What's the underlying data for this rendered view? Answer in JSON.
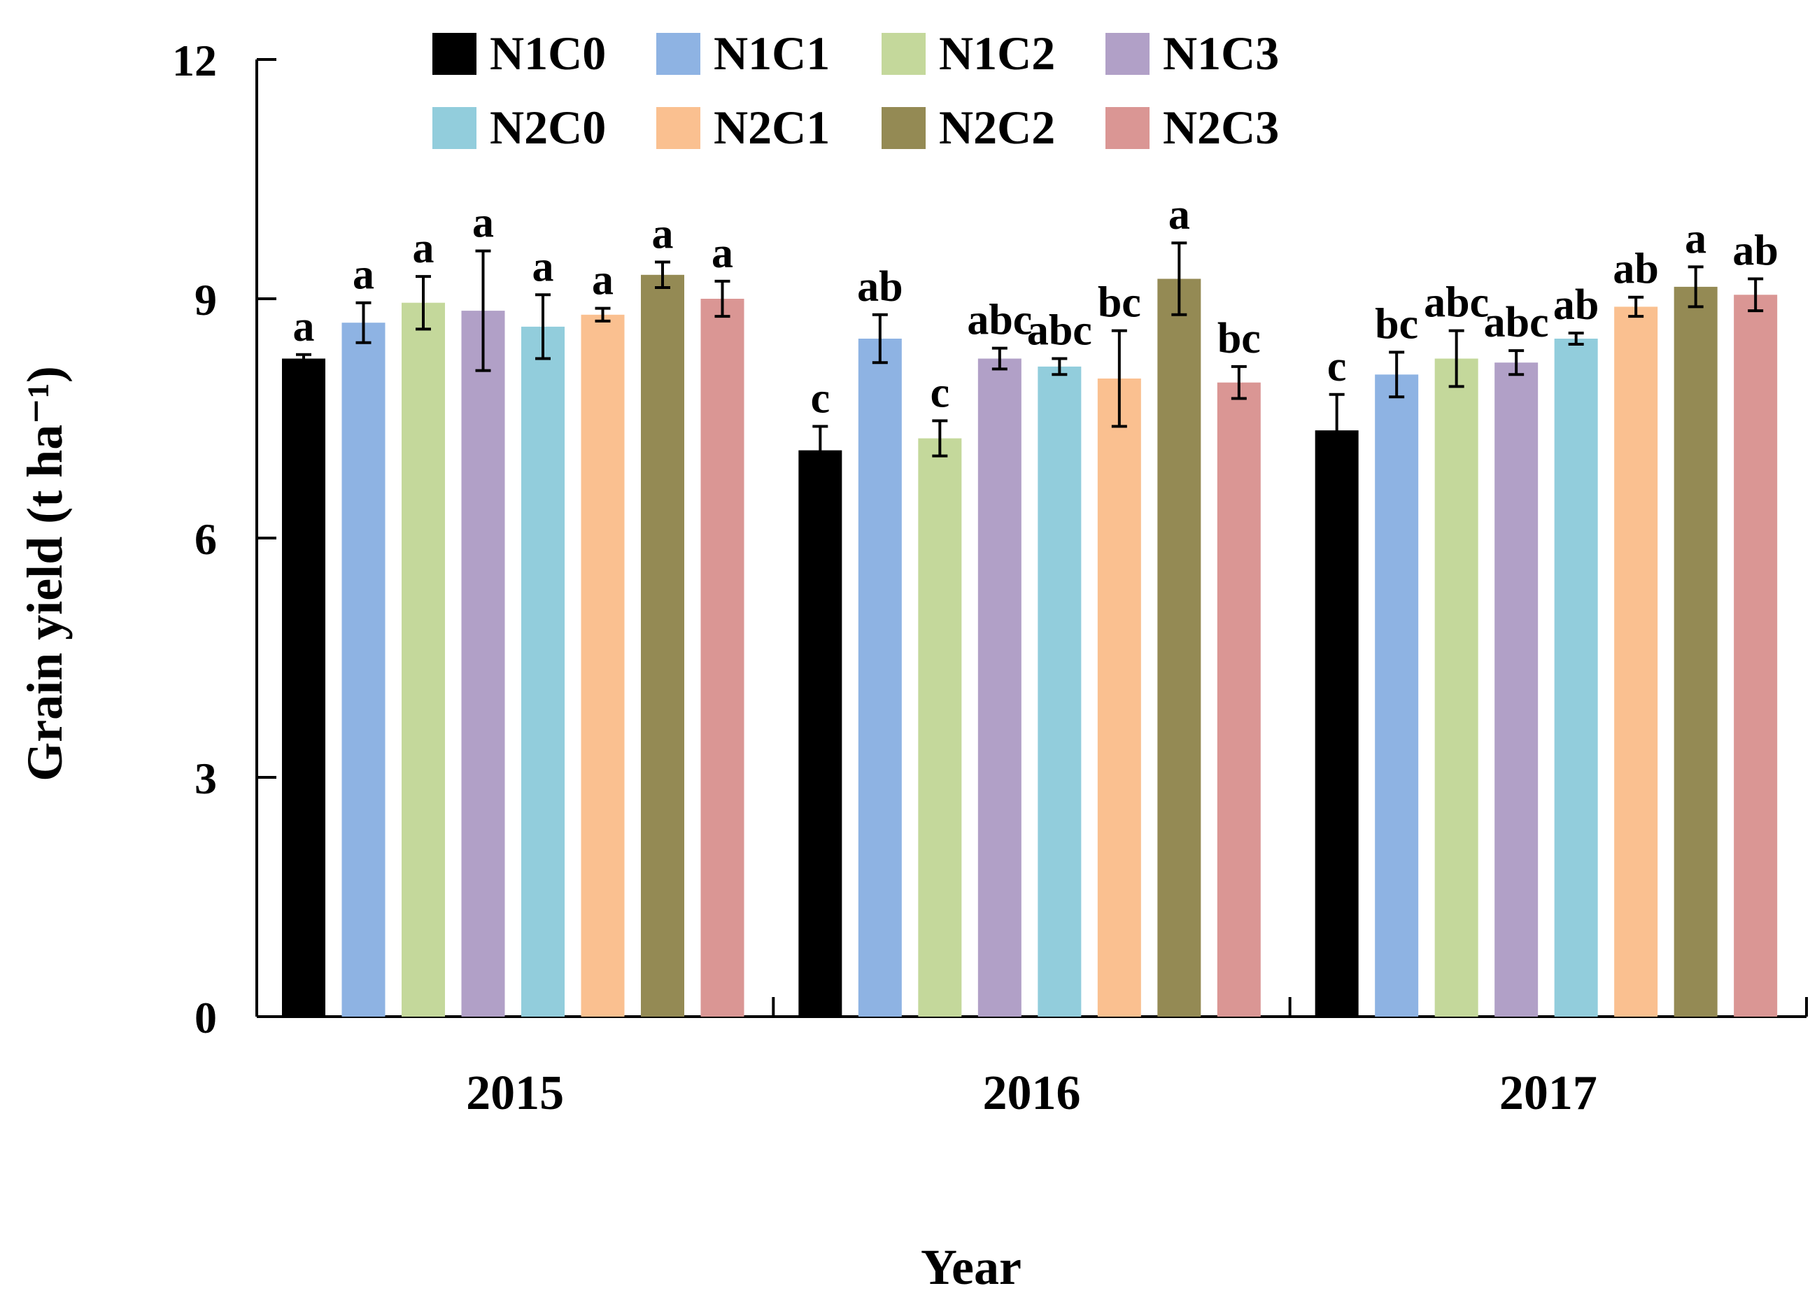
{
  "chart_data": {
    "type": "bar",
    "title": "",
    "xlabel": "Year",
    "ylabel": "Grain yield (t ha⁻¹)",
    "ylim": [
      0,
      12
    ],
    "yticks": [
      "0",
      "3",
      "6",
      "9",
      "12"
    ],
    "categories": [
      "2015",
      "2016",
      "2017"
    ],
    "legend_position": "top",
    "series": [
      {
        "name": "N1C0",
        "color": "#000000",
        "values": [
          8.25,
          7.1,
          7.35
        ],
        "errors": [
          0.05,
          0.3,
          0.45
        ],
        "letters": [
          "a",
          "c",
          "c"
        ]
      },
      {
        "name": "N1C1",
        "color": "#8EB3E3",
        "values": [
          8.7,
          8.5,
          8.05
        ],
        "errors": [
          0.25,
          0.3,
          0.28
        ],
        "letters": [
          "a",
          "ab",
          "bc"
        ]
      },
      {
        "name": "N1C2",
        "color": "#C4D89B",
        "values": [
          8.95,
          7.25,
          8.25
        ],
        "errors": [
          0.33,
          0.22,
          0.35
        ],
        "letters": [
          "a",
          "c",
          "abc"
        ]
      },
      {
        "name": "N1C3",
        "color": "#B1A0C7",
        "values": [
          8.85,
          8.25,
          8.2
        ],
        "errors": [
          0.75,
          0.13,
          0.15
        ],
        "letters": [
          "a",
          "abc",
          "abc"
        ]
      },
      {
        "name": "N2C0",
        "color": "#92CDDC",
        "values": [
          8.65,
          8.15,
          8.5
        ],
        "errors": [
          0.4,
          0.1,
          0.07
        ],
        "letters": [
          "a",
          "abc",
          "ab"
        ]
      },
      {
        "name": "N2C1",
        "color": "#FAC090",
        "values": [
          8.8,
          8.0,
          8.9
        ],
        "errors": [
          0.08,
          0.6,
          0.12
        ],
        "letters": [
          "a",
          "bc",
          "ab"
        ]
      },
      {
        "name": "N2C2",
        "color": "#948A54",
        "values": [
          9.3,
          9.25,
          9.15
        ],
        "errors": [
          0.16,
          0.45,
          0.25
        ],
        "letters": [
          "a",
          "a",
          "a"
        ]
      },
      {
        "name": "N2C3",
        "color": "#DA9694",
        "values": [
          9.0,
          7.95,
          9.05
        ],
        "errors": [
          0.22,
          0.2,
          0.2
        ],
        "letters": [
          "a",
          "bc",
          "ab"
        ]
      }
    ]
  }
}
